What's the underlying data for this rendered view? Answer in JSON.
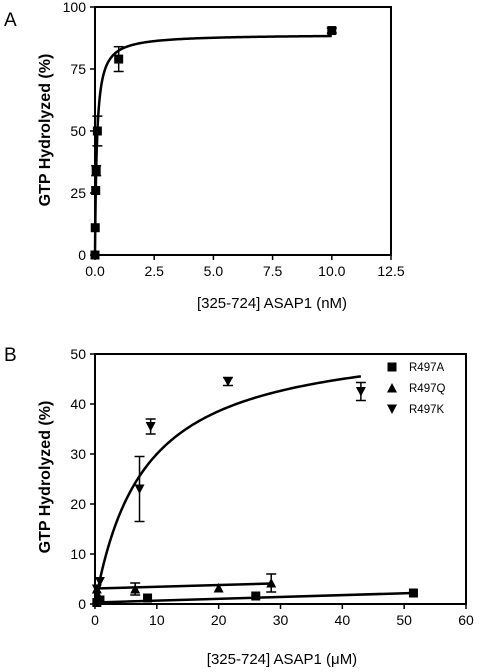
{
  "chart_data": [
    {
      "panel_label": "A",
      "type": "scatter",
      "xlabel": "[325-724] ASAP1 (nM)",
      "ylabel": "GTP Hydrolyzed (%)",
      "xlim": [
        0,
        12.5
      ],
      "ylim": [
        0,
        100
      ],
      "x_ticks": [
        0.0,
        2.5,
        5.0,
        7.5,
        10.0,
        12.5
      ],
      "x_tick_labels": [
        "0.0",
        "2.5",
        "5.0",
        "7.5",
        "10.0",
        "12.5"
      ],
      "y_ticks": [
        0,
        25,
        50,
        75,
        100
      ],
      "y_tick_labels": [
        "0",
        "25",
        "50",
        "75",
        "100"
      ],
      "grid": false,
      "series": [
        {
          "marker": "square",
          "points": [
            {
              "x": 0.0,
              "y": 0
            },
            {
              "x": 0.01,
              "y": 11
            },
            {
              "x": 0.03,
              "y": 26
            },
            {
              "x": 0.05,
              "y": 34,
              "err": 2
            },
            {
              "x": 0.1,
              "y": 50,
              "err": 6
            },
            {
              "x": 1.0,
              "y": 79,
              "err": 5
            },
            {
              "x": 10.0,
              "y": 90.5,
              "err": 1
            }
          ],
          "fit": {
            "model": "hyperbola",
            "ymax": 89,
            "k": 0.08
          }
        }
      ]
    },
    {
      "panel_label": "B",
      "type": "scatter",
      "xlabel": "[325-724] ASAP1 (μM)",
      "ylabel": "GTP Hydrolyzed (%)",
      "xlim": [
        0,
        60
      ],
      "ylim": [
        0,
        50
      ],
      "x_ticks": [
        0,
        10,
        20,
        30,
        40,
        50,
        60
      ],
      "x_tick_labels": [
        "0",
        "10",
        "20",
        "30",
        "40",
        "50",
        "60"
      ],
      "y_ticks": [
        0,
        10,
        20,
        30,
        40,
        50
      ],
      "y_tick_labels": [
        "0",
        "10",
        "20",
        "30",
        "40",
        "50"
      ],
      "grid": false,
      "legend_position": "top-right",
      "series": [
        {
          "name": "R497A",
          "marker": "square",
          "points": [
            {
              "x": 0.3,
              "y": 0.3
            },
            {
              "x": 0.8,
              "y": 0.8
            },
            {
              "x": 8.5,
              "y": 1.2
            },
            {
              "x": 26,
              "y": 1.6
            },
            {
              "x": 51.5,
              "y": 2.2
            }
          ],
          "fit": {
            "model": "line",
            "points": [
              [
                0,
                0.3
              ],
              [
                51.5,
                2.2
              ]
            ]
          }
        },
        {
          "name": "R497Q",
          "marker": "triangle-up",
          "points": [
            {
              "x": 0.3,
              "y": 3.0
            },
            {
              "x": 0.6,
              "y": 1.5
            },
            {
              "x": 6.5,
              "y": 3.0,
              "err": 1.2
            },
            {
              "x": 20,
              "y": 3.2
            },
            {
              "x": 28.5,
              "y": 4.2,
              "err": 1.8
            }
          ],
          "fit": {
            "model": "line",
            "points": [
              [
                0,
                3.1
              ],
              [
                28.5,
                4.1
              ]
            ]
          }
        },
        {
          "name": "R497K",
          "marker": "triangle-down",
          "points": [
            {
              "x": 0.3,
              "y": 3.0
            },
            {
              "x": 0.8,
              "y": 4.5
            },
            {
              "x": 7.2,
              "y": 23,
              "err": 6.5
            },
            {
              "x": 9.0,
              "y": 35.5,
              "err": 1.5
            },
            {
              "x": 21.5,
              "y": 44.5,
              "err": 0.8
            },
            {
              "x": 43,
              "y": 42.5,
              "err": 1.8
            }
          ],
          "fit": {
            "model": "hyperbola",
            "ymax": 54,
            "k": 8
          }
        }
      ]
    }
  ]
}
